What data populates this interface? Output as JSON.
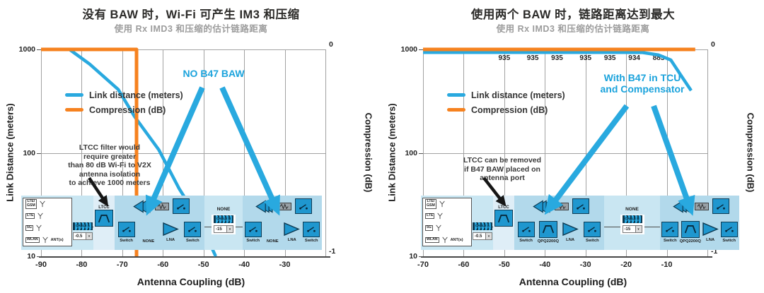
{
  "accent_colors": {
    "link_blue": "#29A9DF",
    "compression_orange": "#F6821F"
  },
  "panels": [
    {
      "title": "没有 BAW 时，Wi-Fi 可产生 IM3 和压缩",
      "subtitle": "使用 Rx IMD3 和压缩的估计链路距离",
      "y_left_label": "Link Distance (meters)",
      "y_right_label": "Compression (dB)",
      "x_label": "Antenna Coupling (dB)",
      "legend": [
        {
          "label": "Link distance (meters)",
          "color": "#29A9DF"
        },
        {
          "label": "Compression (dB)",
          "color": "#F6821F"
        }
      ],
      "callout": "NO B47 BAW",
      "note": "LTCC filter would\nrequire greater\nthan 80 dB Wi-Fi to V2X\nantenna isolation\nto achieve 1000 meters",
      "chart_data": {
        "type": "line",
        "x_label": "Antenna Coupling (dB)",
        "x_range": [
          -90,
          -20
        ],
        "x_ticks": [
          -90,
          -80,
          -70,
          -60,
          -50,
          -40,
          -30
        ],
        "y_left": {
          "label": "Link Distance (meters)",
          "scale": "log",
          "range": [
            10,
            1000
          ],
          "ticks": [
            1000,
            100,
            10
          ]
        },
        "y_right": {
          "label": "Compression (dB)",
          "range": [
            -1,
            0
          ],
          "ticks": [
            0,
            -1
          ]
        },
        "grid": true,
        "series": [
          {
            "name": "Link distance (meters)",
            "axis": "left",
            "color": "#29A9DF",
            "points": [
              [
                -90,
                1000
              ],
              [
                -83,
                1000
              ],
              [
                -78,
                720
              ],
              [
                -71,
                410
              ],
              [
                -67,
                225
              ],
              [
                -61,
                107
              ],
              [
                -56,
                45
              ],
              [
                -51,
                22
              ],
              [
                -47,
                10
              ]
            ]
          },
          {
            "name": "Compression (dB)",
            "axis": "right",
            "color": "#F6821F",
            "points": [
              [
                -90,
                0
              ],
              [
                -66.5,
                0
              ],
              [
                -66.5,
                -1
              ]
            ]
          }
        ]
      },
      "diagram": {
        "antennas": [
          "LTE/\nGSM",
          "LTE",
          "5G",
          "WLAN"
        ],
        "ants_label": "ANT(s)",
        "cable_a": {
          "label": "CABLE A",
          "loss": "-0.5"
        },
        "ltcc_label": "LTCC",
        "module1": {
          "labels": [
            "Switch",
            "NONE",
            "LNA",
            "Switch"
          ]
        },
        "mid_label": "NONE",
        "cable_b": {
          "label": "CABLE B",
          "loss": "-15"
        },
        "module2": {
          "labels": [
            "Switch",
            "NONE",
            "LNA",
            "Switch"
          ]
        }
      }
    },
    {
      "title": "使用两个 BAW 时，链路距离达到最大",
      "subtitle": "使用 Rx IMD3 和压缩的估计链路距离",
      "y_left_label": "Link Distance (meters)",
      "y_right_label": "Compression (dB)",
      "x_label": "Antenna Coupling (dB)",
      "legend": [
        {
          "label": "Link distance (meters)",
          "color": "#29A9DF"
        },
        {
          "label": "Compression (dB)",
          "color": "#F6821F"
        }
      ],
      "callout": "With B47 in TCU\nand Compensator",
      "note": "LTCC can be removed\nif B47 BAW placed on\nantenna port",
      "chart_data": {
        "type": "line",
        "x_label": "Antenna Coupling (dB)",
        "x_range": [
          -70,
          0
        ],
        "x_ticks": [
          -70,
          -60,
          -50,
          -40,
          -30,
          -20,
          -10
        ],
        "y_left": {
          "label": "Link Distance (meters)",
          "scale": "log",
          "range": [
            10,
            1000
          ],
          "ticks": [
            1000,
            100,
            10
          ]
        },
        "y_right": {
          "label": "Compression (dB)",
          "range": [
            -1,
            0
          ],
          "ticks": [
            0,
            -1
          ]
        },
        "grid": true,
        "series": [
          {
            "name": "Link distance (meters)",
            "axis": "left",
            "color": "#29A9DF",
            "points": [
              [
                -70,
                935
              ],
              [
                -20,
                935
              ],
              [
                -16,
                933
              ],
              [
                -12,
                883
              ],
              [
                -9,
                790
              ],
              [
                -6.5,
                560
              ],
              [
                -4,
                400
              ]
            ]
          },
          {
            "name": "Compression (dB)",
            "axis": "right",
            "color": "#F6821F",
            "points": [
              [
                -70,
                0
              ],
              [
                -3,
                0
              ]
            ]
          }
        ],
        "point_labels": [
          {
            "x": -50,
            "text": "935"
          },
          {
            "x": -43,
            "text": "935"
          },
          {
            "x": -37,
            "text": "935"
          },
          {
            "x": -30,
            "text": "935"
          },
          {
            "x": -24,
            "text": "935"
          },
          {
            "x": -18,
            "text": "934"
          },
          {
            "x": -12,
            "text": "883"
          }
        ]
      },
      "diagram": {
        "antennas": [
          "LTE/\nGSM",
          "LTE",
          "5G",
          "WLAN"
        ],
        "ants_label": "ANT(s)",
        "cable_a": {
          "label": "CABLE A",
          "loss": "-0.5"
        },
        "ltcc_label": "LTCC",
        "module1": {
          "labels": [
            "Switch",
            "QPQ2200Q",
            "LNA",
            "Switch"
          ]
        },
        "mid_label": "NONE",
        "cable_b": {
          "label": "CABLE B",
          "loss": "-15"
        },
        "module2": {
          "labels": [
            "Switch",
            "QPQ2200Q",
            "LNA",
            "Switch"
          ]
        }
      }
    }
  ]
}
